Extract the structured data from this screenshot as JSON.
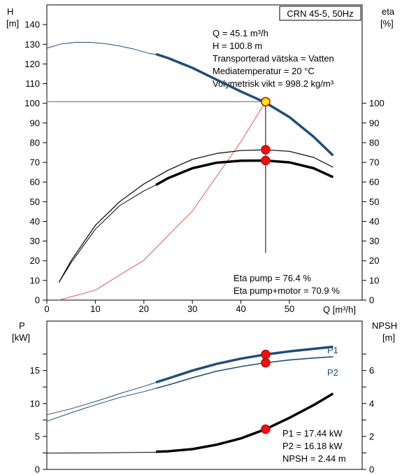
{
  "chart_data": [
    {
      "type": "line",
      "model_label": "CRN 45-5, 50Hz",
      "ylabel_left": [
        "H",
        "[m]"
      ],
      "ylabel_right": [
        "eta",
        "[%]"
      ],
      "xlabel": "Q [m³/h]",
      "xlim": [
        0,
        65
      ],
      "ylim_left": [
        0,
        150
      ],
      "ylim_right": [
        0,
        150
      ],
      "x_ticks": [
        0,
        10,
        20,
        30,
        40,
        50
      ],
      "y_ticks_left": [
        0,
        10,
        20,
        30,
        40,
        50,
        60,
        70,
        80,
        90,
        100,
        110,
        120,
        130,
        140
      ],
      "y_ticks_right": [
        0,
        10,
        20,
        30,
        40,
        50,
        60,
        70,
        80,
        90,
        100
      ],
      "grid": false,
      "info_lines": [
        "Q = 45.1 m³/h",
        "H = 100.8 m",
        "Transporterad vätska = Vatten",
        "Mediatemperatur = 20 °C",
        "Volymetrisk vikt = 998.2 kg/m³"
      ],
      "eta_lines": [
        "Eta pump = 76.4 %",
        "Eta pump+motor = 70.9 %"
      ],
      "series": [
        {
          "key": "head_thin",
          "color": "#1f4e79",
          "width": 1,
          "x": [
            0,
            3,
            6,
            9,
            12,
            15,
            18,
            21,
            22.5
          ],
          "y": [
            128,
            130.2,
            131,
            131,
            130.3,
            129.1,
            127.5,
            125.4,
            124.8
          ]
        },
        {
          "key": "head",
          "color": "#1f4e79",
          "width": 3.5,
          "x": [
            22.5,
            25,
            30,
            35,
            40,
            45,
            50,
            55,
            59
          ],
          "y": [
            125,
            123,
            118,
            112,
            106,
            100.5,
            93,
            83,
            73.5
          ]
        },
        {
          "key": "system_curve",
          "color": "#e05a50",
          "width": 1,
          "x": [
            2.5,
            10,
            20,
            30,
            40,
            45.1
          ],
          "y": [
            0,
            5.1,
            20.3,
            45.3,
            80.5,
            100.8
          ]
        },
        {
          "key": "eta_pump",
          "color": "#000000",
          "width": 1.2,
          "x": [
            2.5,
            5,
            10,
            15,
            20,
            25,
            30,
            35,
            40,
            45.1,
            50,
            55,
            59
          ],
          "y": [
            9,
            20,
            38,
            50,
            59,
            66,
            71.5,
            74.5,
            76,
            76.4,
            75.6,
            72.5,
            67.5
          ]
        },
        {
          "key": "eta_total_thin",
          "color": "#000000",
          "width": 1,
          "x": [
            2.5,
            5,
            10,
            15,
            20,
            22.5
          ],
          "y": [
            9,
            19,
            36,
            48,
            55.5,
            58.5
          ]
        },
        {
          "key": "eta_total",
          "color": "#000000",
          "width": 3.5,
          "x": [
            22.5,
            25,
            30,
            35,
            40,
            45.1,
            50,
            55,
            59
          ],
          "y": [
            58.5,
            62,
            67,
            69.8,
            70.8,
            70.9,
            70,
            67,
            62.5
          ]
        }
      ],
      "operating_points": [
        {
          "x": 45.1,
          "y": 100.8,
          "fill": "#ffee00",
          "stroke": "#cc0000"
        },
        {
          "x": 45.1,
          "y": 76.4,
          "fill": "#ee1111",
          "stroke": "#cc0000"
        },
        {
          "x": 45.1,
          "y": 70.9,
          "fill": "#ee1111",
          "stroke": "#cc0000"
        }
      ]
    },
    {
      "type": "line",
      "ylabel_left": [
        "P",
        "[kW]"
      ],
      "ylabel_right": [
        "NPSH",
        "[m]"
      ],
      "xlim": [
        0,
        65
      ],
      "ylim_left": [
        0,
        22.5
      ],
      "ylim_right": [
        0,
        9
      ],
      "y_ticks_left": [
        0,
        5,
        10,
        15
      ],
      "y_ticks_left_unlabeled": [
        2.5,
        7.5,
        12.5,
        17.5
      ],
      "y_ticks_right": [
        0,
        2,
        4,
        6
      ],
      "y_ticks_right_unlabeled": [
        1,
        3,
        5,
        7
      ],
      "grid": false,
      "series_labels": {
        "p1": "P1",
        "p2": "P2"
      },
      "info_lines": [
        "P1 = 17.44 kW",
        "P2 = 16.18 kW",
        "NPSH = 2.44 m"
      ],
      "series": [
        {
          "key": "p1_thin",
          "axis": "left",
          "color": "#1f4e79",
          "width": 1,
          "x": [
            0,
            5,
            10,
            15,
            20,
            22.5
          ],
          "y": [
            8.3,
            9.2,
            10.3,
            11.5,
            12.6,
            13.2
          ]
        },
        {
          "key": "p1",
          "axis": "left",
          "color": "#1f4e79",
          "width": 3.5,
          "x": [
            22.5,
            25,
            30,
            35,
            40,
            45.1,
            50,
            55,
            59
          ],
          "y": [
            13.2,
            13.8,
            15,
            16,
            16.8,
            17.44,
            17.9,
            18.3,
            18.6
          ]
        },
        {
          "key": "p2_thin",
          "axis": "left",
          "color": "#1f4e79",
          "width": 1,
          "x": [
            0,
            5,
            10,
            15,
            20,
            22.5
          ],
          "y": [
            7.3,
            8.6,
            9.8,
            10.9,
            11.8,
            12.3
          ]
        },
        {
          "key": "p2",
          "axis": "left",
          "color": "#1f4e79",
          "width": 1.6,
          "x": [
            22.5,
            25,
            30,
            35,
            40,
            45.1,
            50,
            55,
            59
          ],
          "y": [
            12.3,
            12.8,
            13.9,
            14.9,
            15.6,
            16.18,
            16.6,
            16.9,
            17.1
          ]
        },
        {
          "key": "npsh_thin",
          "axis": "right",
          "color": "#000000",
          "width": 1,
          "x": [
            0,
            10,
            22.5
          ],
          "y": [
            0.99,
            1.0,
            1.04
          ]
        },
        {
          "key": "npsh",
          "axis": "right",
          "color": "#000000",
          "width": 3.5,
          "x": [
            22.5,
            25,
            30,
            35,
            40,
            45.1,
            50,
            55,
            59
          ],
          "y": [
            1.07,
            1.1,
            1.23,
            1.5,
            1.88,
            2.44,
            3.13,
            3.9,
            4.6
          ]
        }
      ],
      "operating_points": [
        {
          "axis": "left",
          "x": 45.1,
          "y": 17.44,
          "fill": "#ee1111",
          "stroke": "#cc0000"
        },
        {
          "axis": "left",
          "x": 45.1,
          "y": 16.18,
          "fill": "#ee1111",
          "stroke": "#cc0000"
        },
        {
          "axis": "right",
          "x": 45.1,
          "y": 2.44,
          "fill": "#ee1111",
          "stroke": "#cc0000"
        }
      ]
    }
  ]
}
